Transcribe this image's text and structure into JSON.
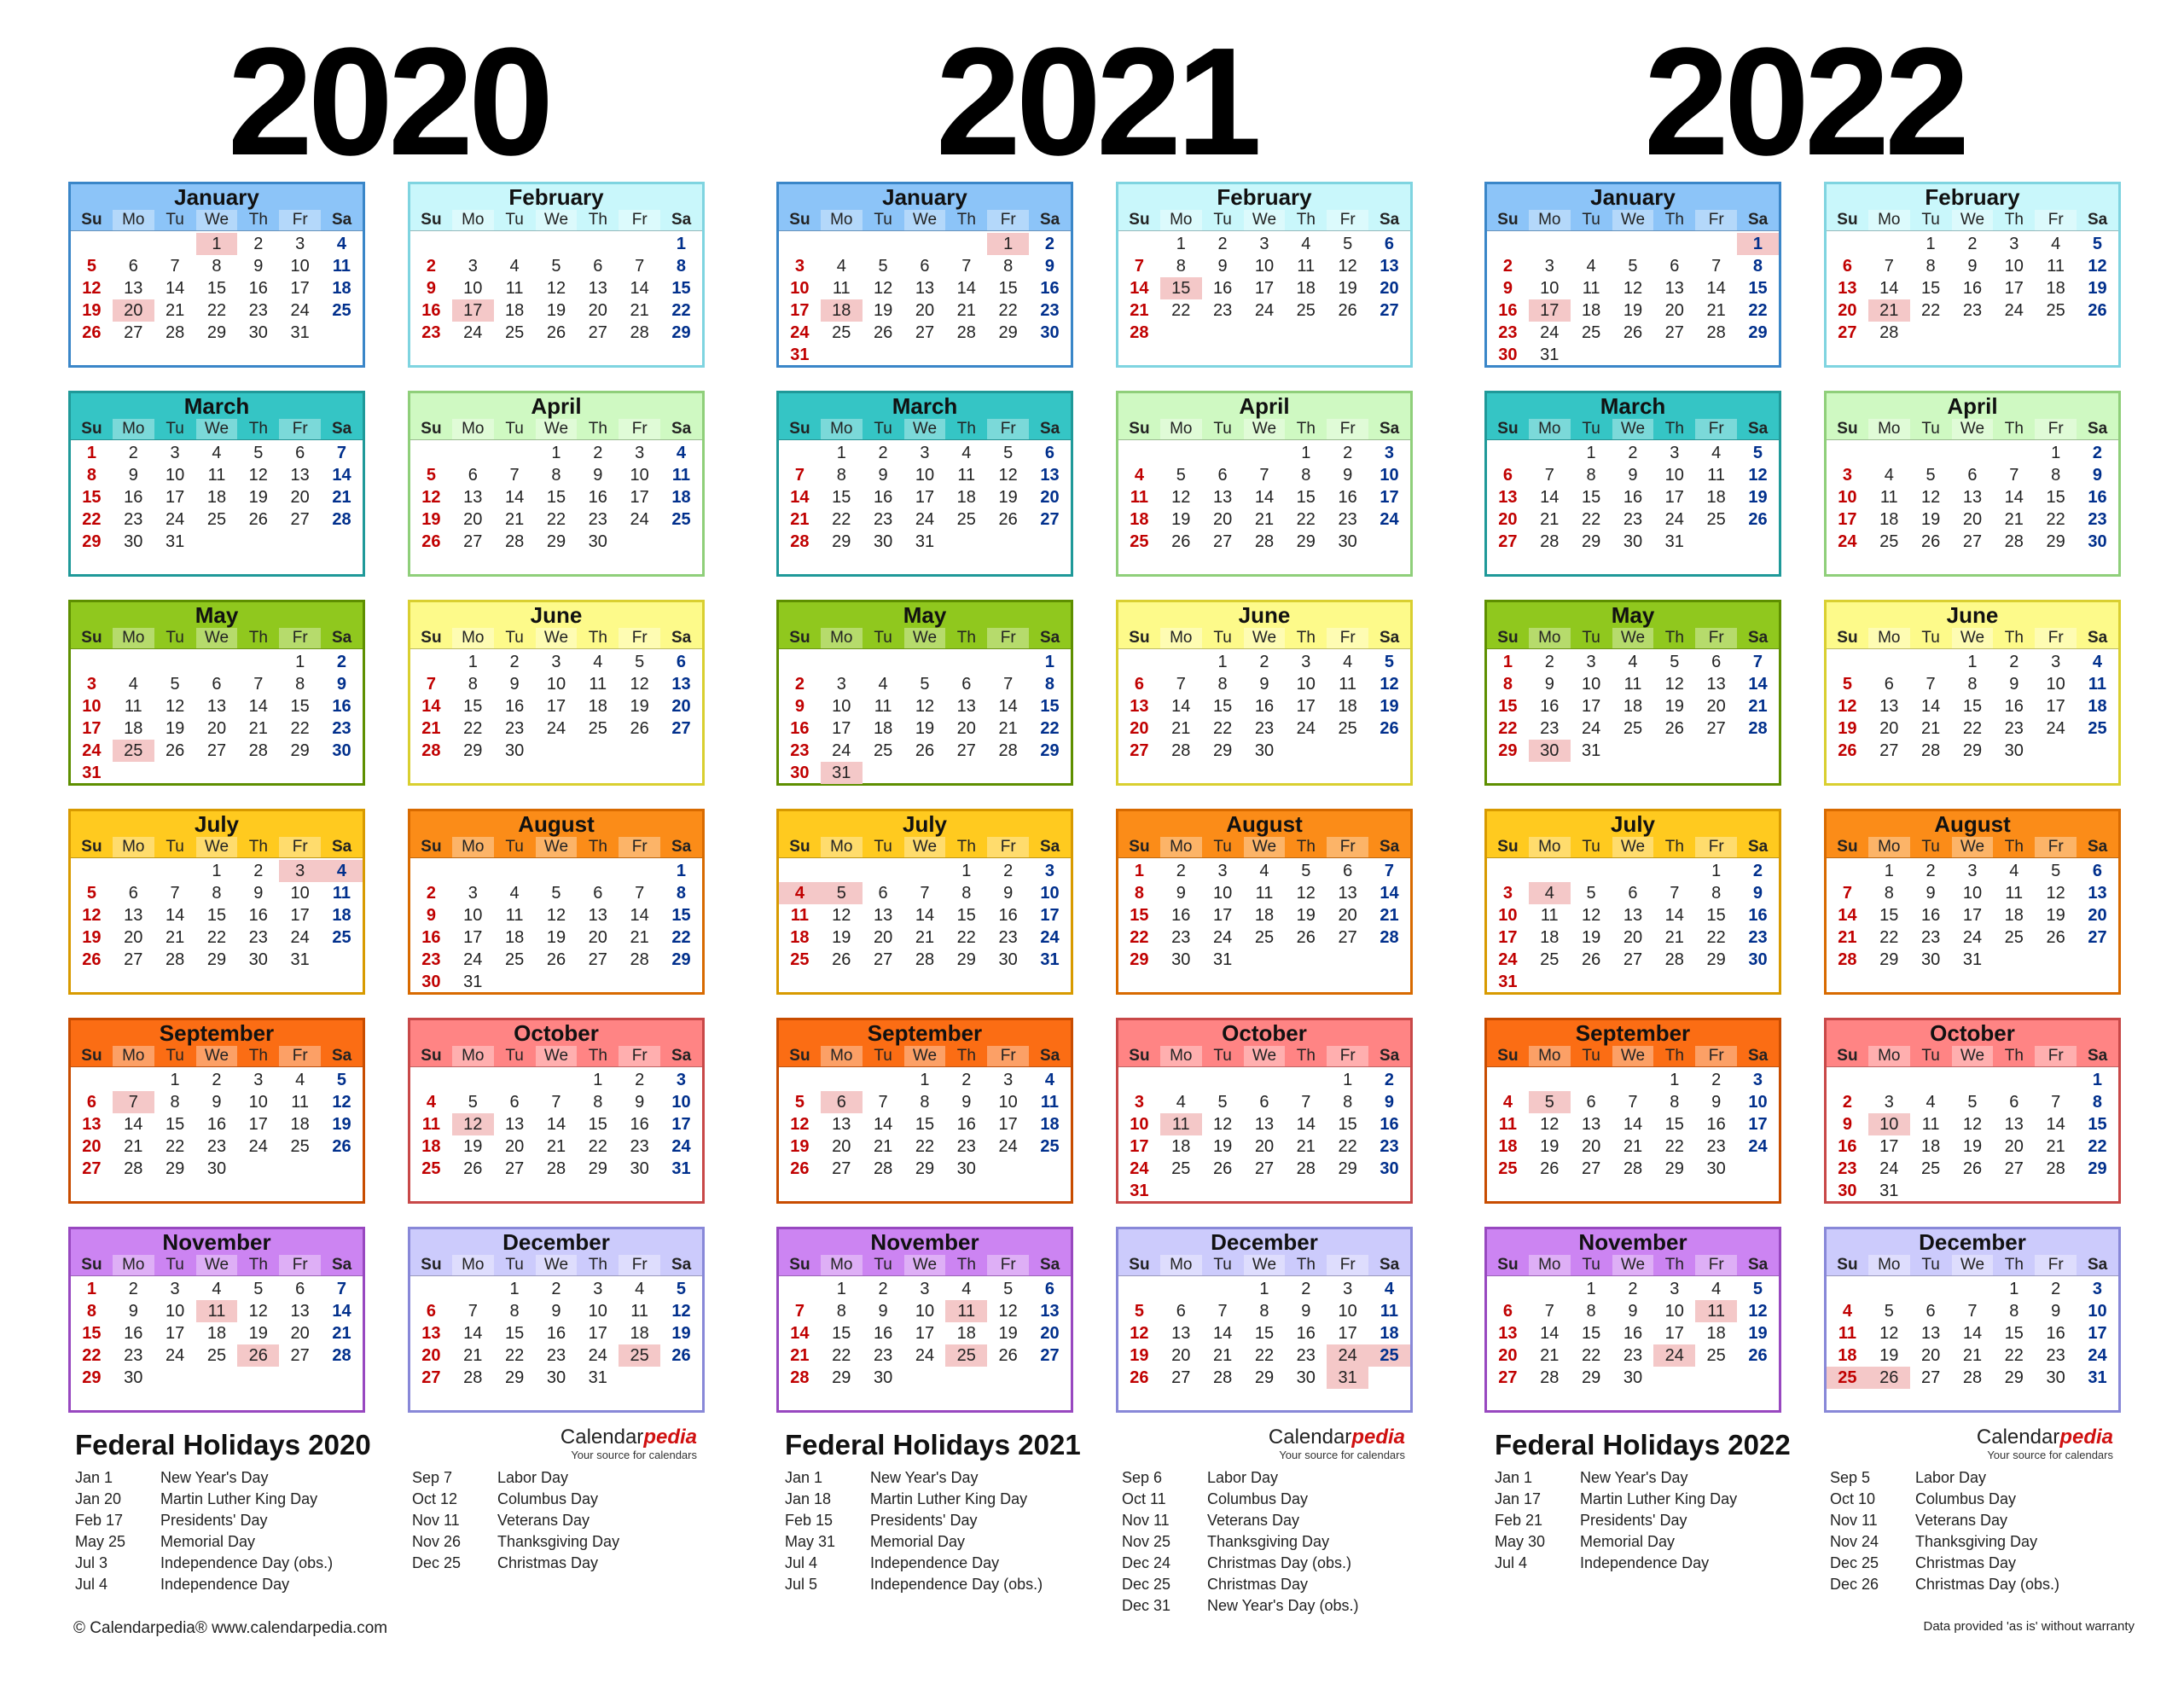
{
  "weekday_labels": [
    "Su",
    "Mo",
    "Tu",
    "We",
    "Th",
    "Fr",
    "Sa"
  ],
  "colors": {
    "January": {
      "hdr": "#8cc4f8",
      "border": "#3a86c8"
    },
    "February": {
      "hdr": "#c9f7fb",
      "border": "#7fd4e0"
    },
    "March": {
      "hdr": "#35c5c5",
      "border": "#1f9999"
    },
    "April": {
      "hdr": "#cff9c2",
      "border": "#8fcf7a"
    },
    "May": {
      "hdr": "#90c81e",
      "border": "#5e8f00"
    },
    "June": {
      "hdr": "#fdfa8a",
      "border": "#d9cf30"
    },
    "July": {
      "hdr": "#ffca1f",
      "border": "#d89a00"
    },
    "August": {
      "hdr": "#fb8c18",
      "border": "#d86a00"
    },
    "September": {
      "hdr": "#fb6d14",
      "border": "#c84c00"
    },
    "October": {
      "hdr": "#ff8484",
      "border": "#c84848"
    },
    "November": {
      "hdr": "#cc84f2",
      "border": "#9848c0"
    },
    "December": {
      "hdr": "#cccbfc",
      "border": "#8888d8"
    }
  },
  "years": [
    {
      "year": "2020",
      "months": [
        {
          "name": "January",
          "start": 3,
          "days": 31,
          "holidays": [
            1,
            20
          ]
        },
        {
          "name": "February",
          "start": 6,
          "days": 29,
          "holidays": [
            17
          ]
        },
        {
          "name": "March",
          "start": 0,
          "days": 31,
          "holidays": []
        },
        {
          "name": "April",
          "start": 3,
          "days": 30,
          "holidays": []
        },
        {
          "name": "May",
          "start": 5,
          "days": 31,
          "holidays": [
            25
          ]
        },
        {
          "name": "June",
          "start": 1,
          "days": 30,
          "holidays": []
        },
        {
          "name": "July",
          "start": 3,
          "days": 31,
          "holidays": [
            3,
            4
          ]
        },
        {
          "name": "August",
          "start": 6,
          "days": 31,
          "holidays": []
        },
        {
          "name": "September",
          "start": 2,
          "days": 30,
          "holidays": [
            7
          ]
        },
        {
          "name": "October",
          "start": 4,
          "days": 31,
          "holidays": [
            12
          ]
        },
        {
          "name": "November",
          "start": 0,
          "days": 30,
          "holidays": [
            11,
            26
          ]
        },
        {
          "name": "December",
          "start": 2,
          "days": 31,
          "holidays": [
            25
          ]
        }
      ],
      "federal_title": "Federal Holidays 2020",
      "holidays_left": [
        {
          "date": "Jan 1",
          "name": "New Year's Day"
        },
        {
          "date": "Jan 20",
          "name": "Martin Luther King Day"
        },
        {
          "date": "Feb 17",
          "name": "Presidents' Day"
        },
        {
          "date": "May 25",
          "name": "Memorial Day"
        },
        {
          "date": "Jul 3",
          "name": "Independence Day (obs.)"
        },
        {
          "date": "Jul 4",
          "name": "Independence Day"
        }
      ],
      "holidays_right": [
        {
          "date": "Sep 7",
          "name": "Labor Day"
        },
        {
          "date": "Oct 12",
          "name": "Columbus Day"
        },
        {
          "date": "Nov 11",
          "name": "Veterans Day"
        },
        {
          "date": "Nov 26",
          "name": "Thanksgiving Day"
        },
        {
          "date": "Dec 25",
          "name": "Christmas Day"
        }
      ]
    },
    {
      "year": "2021",
      "months": [
        {
          "name": "January",
          "start": 5,
          "days": 31,
          "holidays": [
            1,
            18
          ]
        },
        {
          "name": "February",
          "start": 1,
          "days": 28,
          "holidays": [
            15
          ]
        },
        {
          "name": "March",
          "start": 1,
          "days": 31,
          "holidays": []
        },
        {
          "name": "April",
          "start": 4,
          "days": 30,
          "holidays": []
        },
        {
          "name": "May",
          "start": 6,
          "days": 31,
          "holidays": [
            31
          ]
        },
        {
          "name": "June",
          "start": 2,
          "days": 30,
          "holidays": []
        },
        {
          "name": "July",
          "start": 4,
          "days": 31,
          "holidays": [
            4,
            5
          ]
        },
        {
          "name": "August",
          "start": 0,
          "days": 31,
          "holidays": []
        },
        {
          "name": "September",
          "start": 3,
          "days": 30,
          "holidays": [
            6
          ]
        },
        {
          "name": "October",
          "start": 5,
          "days": 31,
          "holidays": [
            11
          ]
        },
        {
          "name": "November",
          "start": 1,
          "days": 30,
          "holidays": [
            11,
            25
          ]
        },
        {
          "name": "December",
          "start": 3,
          "days": 31,
          "holidays": [
            24,
            25,
            31
          ]
        }
      ],
      "federal_title": "Federal Holidays 2021",
      "holidays_left": [
        {
          "date": "Jan 1",
          "name": "New Year's Day"
        },
        {
          "date": "Jan 18",
          "name": "Martin Luther King Day"
        },
        {
          "date": "Feb 15",
          "name": "Presidents' Day"
        },
        {
          "date": "May 31",
          "name": "Memorial Day"
        },
        {
          "date": "Jul 4",
          "name": "Independence Day"
        },
        {
          "date": "Jul 5",
          "name": "Independence Day (obs.)"
        }
      ],
      "holidays_right": [
        {
          "date": "Sep 6",
          "name": "Labor Day"
        },
        {
          "date": "Oct 11",
          "name": "Columbus Day"
        },
        {
          "date": "Nov 11",
          "name": "Veterans Day"
        },
        {
          "date": "Nov 25",
          "name": "Thanksgiving Day"
        },
        {
          "date": "Dec 24",
          "name": "Christmas Day (obs.)"
        },
        {
          "date": "Dec 25",
          "name": "Christmas Day"
        },
        {
          "date": "Dec 31",
          "name": "New Year's Day (obs.)"
        }
      ]
    },
    {
      "year": "2022",
      "months": [
        {
          "name": "January",
          "start": 6,
          "days": 31,
          "holidays": [
            1,
            17
          ]
        },
        {
          "name": "February",
          "start": 2,
          "days": 28,
          "holidays": [
            21
          ]
        },
        {
          "name": "March",
          "start": 2,
          "days": 31,
          "holidays": []
        },
        {
          "name": "April",
          "start": 5,
          "days": 30,
          "holidays": []
        },
        {
          "name": "May",
          "start": 0,
          "days": 31,
          "holidays": [
            30
          ]
        },
        {
          "name": "June",
          "start": 3,
          "days": 30,
          "holidays": []
        },
        {
          "name": "July",
          "start": 5,
          "days": 31,
          "holidays": [
            4
          ]
        },
        {
          "name": "August",
          "start": 1,
          "days": 31,
          "holidays": []
        },
        {
          "name": "September",
          "start": 4,
          "days": 30,
          "holidays": [
            5
          ]
        },
        {
          "name": "October",
          "start": 6,
          "days": 31,
          "holidays": [
            10
          ]
        },
        {
          "name": "November",
          "start": 2,
          "days": 30,
          "holidays": [
            11,
            24
          ]
        },
        {
          "name": "December",
          "start": 4,
          "days": 31,
          "holidays": [
            25,
            26
          ]
        }
      ],
      "federal_title": "Federal Holidays 2022",
      "holidays_left": [
        {
          "date": "Jan 1",
          "name": "New Year's Day"
        },
        {
          "date": "Jan 17",
          "name": "Martin Luther King Day"
        },
        {
          "date": "Feb 21",
          "name": "Presidents' Day"
        },
        {
          "date": "May 30",
          "name": "Memorial Day"
        },
        {
          "date": "Jul 4",
          "name": "Independence Day"
        }
      ],
      "holidays_right": [
        {
          "date": "Sep 5",
          "name": "Labor Day"
        },
        {
          "date": "Oct 10",
          "name": "Columbus Day"
        },
        {
          "date": "Nov 11",
          "name": "Veterans Day"
        },
        {
          "date": "Nov 24",
          "name": "Thanksgiving Day"
        },
        {
          "date": "Dec 25",
          "name": "Christmas Day"
        },
        {
          "date": "Dec 26",
          "name": "Christmas Day (obs.)"
        }
      ]
    }
  ],
  "brand": {
    "name_plain": "Calendar",
    "name_styled": "pedia",
    "tagline": "Your source for calendars"
  },
  "footer": {
    "left": "© Calendarpedia®   www.calendarpedia.com",
    "right": "Data provided 'as is' without warranty"
  }
}
